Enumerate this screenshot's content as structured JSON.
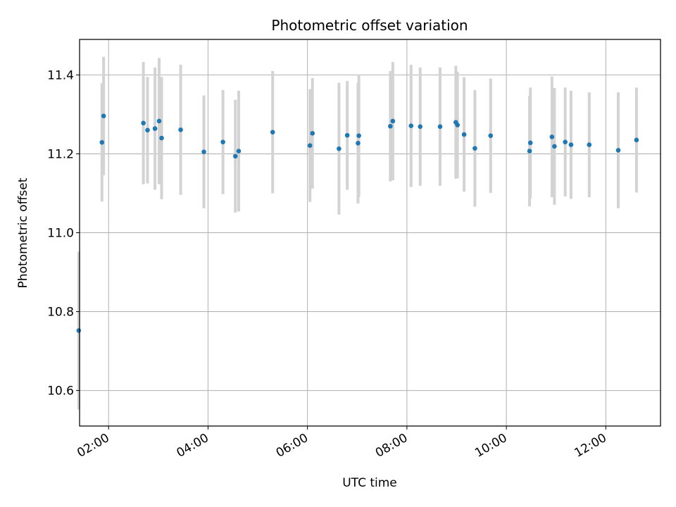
{
  "chart_data": {
    "type": "scatter",
    "title": "Photometric offset variation",
    "xlabel": "UTC time",
    "ylabel": "Photometric offset",
    "xlim": [
      "01:25",
      "13:06"
    ],
    "ylim": [
      10.51,
      11.49
    ],
    "x_ticks": [
      "02:00",
      "04:00",
      "06:00",
      "08:00",
      "10:00",
      "12:00"
    ],
    "y_ticks": [
      "10.6",
      "10.8",
      "11.0",
      "11.2",
      "11.4"
    ],
    "grid": true,
    "colors": {
      "point": "#1f77b4",
      "errorbar": "#d3d3d3",
      "grid": "#b0b0b0"
    },
    "series": [
      {
        "points": [
          {
            "x": "01:24",
            "y": 10.752,
            "yerr": 0.2
          },
          {
            "x": "01:52",
            "y": 11.229,
            "yerr": 0.15
          },
          {
            "x": "01:54",
            "y": 11.296,
            "yerr": 0.15
          },
          {
            "x": "02:42",
            "y": 11.278,
            "yerr": 0.155
          },
          {
            "x": "02:47",
            "y": 11.26,
            "yerr": 0.135
          },
          {
            "x": "02:56",
            "y": 11.264,
            "yerr": 0.155
          },
          {
            "x": "03:01",
            "y": 11.283,
            "yerr": 0.16
          },
          {
            "x": "03:04",
            "y": 11.24,
            "yerr": 0.155
          },
          {
            "x": "03:27",
            "y": 11.261,
            "yerr": 0.165
          },
          {
            "x": "03:55",
            "y": 11.205,
            "yerr": 0.143
          },
          {
            "x": "04:18",
            "y": 11.23,
            "yerr": 0.132
          },
          {
            "x": "04:33",
            "y": 11.194,
            "yerr": 0.143
          },
          {
            "x": "04:37",
            "y": 11.207,
            "yerr": 0.153
          },
          {
            "x": "05:18",
            "y": 11.255,
            "yerr": 0.155
          },
          {
            "x": "06:03",
            "y": 11.221,
            "yerr": 0.143
          },
          {
            "x": "06:06",
            "y": 11.252,
            "yerr": 0.14
          },
          {
            "x": "06:38",
            "y": 11.213,
            "yerr": 0.167
          },
          {
            "x": "06:48",
            "y": 11.247,
            "yerr": 0.138
          },
          {
            "x": "07:01",
            "y": 11.227,
            "yerr": 0.153
          },
          {
            "x": "07:02",
            "y": 11.246,
            "yerr": 0.155
          },
          {
            "x": "07:40",
            "y": 11.27,
            "yerr": 0.14
          },
          {
            "x": "07:43",
            "y": 11.283,
            "yerr": 0.15
          },
          {
            "x": "08:05",
            "y": 11.271,
            "yerr": 0.155
          },
          {
            "x": "08:16",
            "y": 11.269,
            "yerr": 0.15
          },
          {
            "x": "08:40",
            "y": 11.269,
            "yerr": 0.15
          },
          {
            "x": "08:59",
            "y": 11.28,
            "yerr": 0.143
          },
          {
            "x": "09:01",
            "y": 11.273,
            "yerr": 0.135
          },
          {
            "x": "09:09",
            "y": 11.249,
            "yerr": 0.145
          },
          {
            "x": "09:22",
            "y": 11.214,
            "yerr": 0.148
          },
          {
            "x": "09:41",
            "y": 11.246,
            "yerr": 0.145
          },
          {
            "x": "10:28",
            "y": 11.207,
            "yerr": 0.14
          },
          {
            "x": "10:29",
            "y": 11.228,
            "yerr": 0.14
          },
          {
            "x": "10:55",
            "y": 11.243,
            "yerr": 0.153
          },
          {
            "x": "10:58",
            "y": 11.219,
            "yerr": 0.148
          },
          {
            "x": "11:11",
            "y": 11.23,
            "yerr": 0.138
          },
          {
            "x": "11:18",
            "y": 11.223,
            "yerr": 0.137
          },
          {
            "x": "11:40",
            "y": 11.223,
            "yerr": 0.133
          },
          {
            "x": "12:15",
            "y": 11.209,
            "yerr": 0.147
          },
          {
            "x": "12:37",
            "y": 11.235,
            "yerr": 0.133
          }
        ]
      }
    ]
  }
}
